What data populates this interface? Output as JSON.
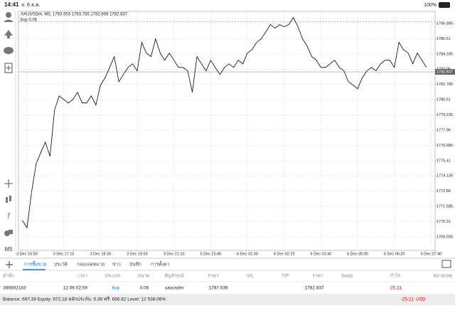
{
  "status_bar": {
    "time": "14:41",
    "date": "จ. 6 ธ.ค.",
    "battery": "100%"
  },
  "toolbar": {
    "timeframe": "M5"
  },
  "chart_data": {
    "type": "line",
    "header": "XAUUSDm, M5, 1783.653 1783.735 1782.808 1782.837",
    "order_label": "buy 0.06",
    "order_price": 1787.039,
    "bid": 1782.837,
    "color": "#000000",
    "grid": true,
    "categories": [
      null,
      "3 Dec 15:55",
      null,
      null,
      null,
      null,
      null,
      null,
      null,
      "3 Dec 17:15",
      null,
      null,
      null,
      null,
      null,
      null,
      null,
      "3 Dec 18:35",
      null,
      null,
      null,
      null,
      null,
      null,
      null,
      "3 Dec 19:55",
      null,
      null,
      null,
      null,
      null,
      null,
      null,
      "3 Dec 21:15",
      null,
      null,
      null,
      null,
      null,
      null,
      null,
      "5 Dec 23:40",
      null,
      null,
      null,
      null,
      null,
      null,
      null,
      "6 Dec 01:00",
      null,
      null,
      null,
      null,
      null,
      null,
      null,
      "6 Dec 02:20",
      null,
      null,
      null,
      null,
      null,
      null,
      null,
      "6 Dec 03:40",
      null,
      null,
      null,
      null,
      null,
      null,
      null,
      "6 Dec 05:00",
      null,
      null,
      null,
      null,
      null,
      null,
      null,
      "6 Dec 06:20",
      null,
      null,
      null,
      null,
      null,
      null,
      null,
      "6 Dec 07:40"
    ],
    "values": [
      1770.4,
      1769.8,
      1772.79,
      1775.17,
      1776.07,
      1776.96,
      1775.77,
      1779.64,
      1780.83,
      1780.53,
      1780.24,
      1780.53,
      1781.13,
      1780.24,
      1780.24,
      1780.83,
      1780.06,
      1781.73,
      1782.33,
      1783.21,
      1784.11,
      1782.02,
      1782.62,
      1783.21,
      1783.51,
      1782.92,
      1785.3,
      1784.41,
      1784.11,
      1785.6,
      1784.41,
      1783.81,
      1784.41,
      1783.81,
      1783.21,
      1783.21,
      1782.92,
      1781.13,
      1784.11,
      1783.51,
      1782.92,
      1783.81,
      1783.21,
      1782.62,
      1783.21,
      1783.51,
      1783.21,
      1783.81,
      1783.51,
      1784.41,
      1784.7,
      1785.3,
      1785.6,
      1786.19,
      1786.79,
      1786.49,
      1786.79,
      1786.61,
      1786.79,
      1787.39,
      1786.61,
      1785.6,
      1785.0,
      1784.11,
      1783.81,
      1783.21,
      1783.21,
      1783.51,
      1783.81,
      1783.21,
      1782.92,
      1782.02,
      1781.73,
      1781.43,
      1782.33,
      1782.92,
      1783.21,
      1782.92,
      1783.51,
      1783.81,
      1783.81,
      1783.21,
      1785.3,
      1784.7,
      1784.41,
      1783.51,
      1784.41,
      1783.81,
      1783.21,
      null
    ],
    "ylim": [
      1768.14,
      1787.54
    ],
    "yticks": [
      1786.885,
      1785.61,
      1784.335,
      1783.06,
      1781.785,
      1780.51,
      1779.235,
      1777.96,
      1776.685,
      1775.41,
      1774.135,
      1772.86,
      1771.585,
      1770.31,
      1769.035
    ]
  },
  "tabs": [
    "การซื้อขาย",
    "ประวัติ",
    "กล่องจดหมาย",
    "ข่าว",
    "บันทึก",
    "การตั้งค่า"
  ],
  "table": {
    "columns": [
      "คำสั่ง",
      "เวลา",
      "ประเภท",
      "ขนาด",
      "สัญลักษณ์",
      "ราคา",
      "S/L",
      "T/P",
      "ราคา",
      "Swap",
      "กำไร",
      "หมายเหตุ"
    ],
    "row": {
      "order": "388892183",
      "time": "12.06 02:59",
      "type": "buy",
      "volume": 0.06,
      "symbol": "xauusdm",
      "open_price": 1787.039,
      "price": 1782.837,
      "profit": -25.21
    }
  },
  "footer": {
    "summary": "Balance: 697.39 Equity: 672.18 หลักประกัน: 5.36 ฟรี: 666.82 Level: 12 538.06%",
    "profit": -25.21,
    "currency": "USD"
  }
}
